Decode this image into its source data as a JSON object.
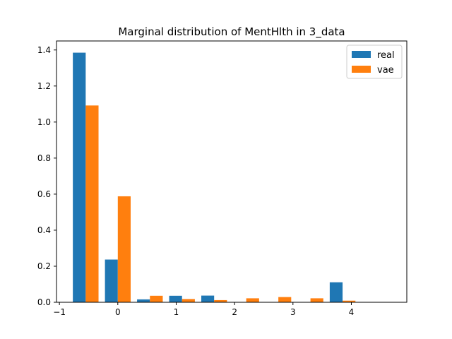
{
  "chart_data": {
    "type": "bar",
    "title": "Marginal distribution of MentHlth in 3_data",
    "xlabel": "",
    "ylabel": "",
    "xlim": [
      -1.05,
      4.95
    ],
    "ylim": [
      0,
      1.45
    ],
    "xticks": [
      -1,
      0,
      1,
      2,
      3,
      4
    ],
    "yticks": [
      0.0,
      0.2,
      0.4,
      0.6,
      0.8,
      1.0,
      1.2,
      1.4
    ],
    "xtick_labels": [
      "−1",
      "0",
      "1",
      "2",
      "3",
      "4"
    ],
    "ytick_labels": [
      "0.0",
      "0.2",
      "0.4",
      "0.6",
      "0.8",
      "1.0",
      "1.2",
      "1.4"
    ],
    "bin_width": 0.22,
    "legend_position": "top-right",
    "series": [
      {
        "name": "real",
        "color": "#1f77b4",
        "x": [
          -0.66,
          -0.11,
          0.44,
          0.99,
          1.54,
          2.09,
          2.64,
          3.19,
          3.74,
          4.29
        ],
        "values": [
          1.385,
          0.237,
          0.016,
          0.036,
          0.037,
          0.0,
          0.0,
          0.0,
          0.111,
          0.0
        ]
      },
      {
        "name": "vae",
        "color": "#ff7f0e",
        "x": [
          -0.44,
          0.11,
          0.66,
          1.21,
          1.76,
          2.31,
          2.86,
          3.41,
          3.96,
          4.51
        ],
        "values": [
          1.092,
          0.588,
          0.036,
          0.018,
          0.012,
          0.022,
          0.029,
          0.022,
          0.009,
          0.0
        ]
      }
    ]
  }
}
